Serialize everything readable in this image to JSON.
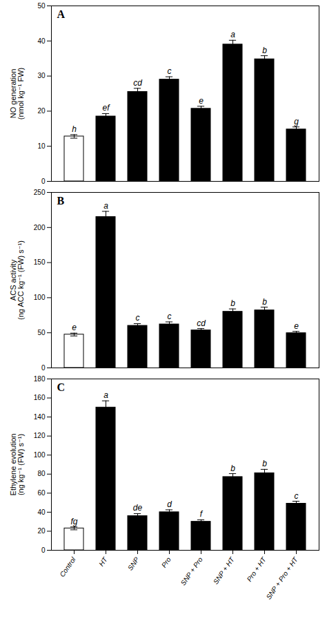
{
  "chart_data": [
    {
      "type": "bar",
      "title": "A",
      "ylabel": "NO generation\n(nmol kg⁻¹ FW)",
      "categories": [
        "Control",
        "HT",
        "SNP",
        "Pro",
        "SNP + Pro",
        "SNP + HT",
        "Pro + HT",
        "SNP + Pro + HT"
      ],
      "values": [
        12.8,
        18.5,
        25.5,
        29.0,
        20.7,
        39.0,
        34.8,
        14.8
      ],
      "errors": [
        0.5,
        0.8,
        1.0,
        0.8,
        0.7,
        1.2,
        1.0,
        0.7
      ],
      "letters": [
        "h",
        "ef",
        "cd",
        "c",
        "e",
        "a",
        "b",
        "g"
      ],
      "colors": [
        "white",
        "black",
        "black",
        "black",
        "black",
        "black",
        "black",
        "black"
      ],
      "ylim": [
        0,
        50
      ],
      "yticks": [
        0,
        10,
        20,
        30,
        40,
        50
      ],
      "grid": false,
      "tick_labels": "y"
    },
    {
      "type": "bar",
      "title": "B",
      "ylabel": "ACS activity\n(ng ACC kg⁻¹ (FW) s⁻¹)",
      "categories": [
        "Control",
        "HT",
        "SNP",
        "Pro",
        "SNP + Pro",
        "SNP + HT",
        "Pro + HT",
        "SNP + Pro + HT"
      ],
      "values": [
        47.5,
        215.0,
        60.0,
        62.0,
        53.5,
        80.0,
        82.0,
        49.5
      ],
      "errors": [
        2.0,
        8.0,
        3.0,
        3.5,
        2.5,
        4.0,
        4.5,
        2.5
      ],
      "letters": [
        "e",
        "a",
        "c",
        "c",
        "cd",
        "b",
        "b",
        "e"
      ],
      "colors": [
        "white",
        "black",
        "black",
        "black",
        "black",
        "black",
        "black",
        "black"
      ],
      "ylim": [
        0,
        250
      ],
      "yticks": [
        0,
        50,
        100,
        150,
        200,
        250
      ],
      "grid": false,
      "tick_labels": "y"
    },
    {
      "type": "bar",
      "title": "C",
      "ylabel": "Ethylene evolution\n(ng kg⁻¹ (FW) s⁻¹)",
      "categories": [
        "Control",
        "HT",
        "SNP",
        "Pro",
        "SNP + Pro",
        "SNP + HT",
        "Pro + HT",
        "SNP + Pro + HT"
      ],
      "values": [
        23.0,
        150.0,
        36.0,
        40.0,
        30.0,
        77.0,
        81.0,
        49.0
      ],
      "errors": [
        1.5,
        7.0,
        2.5,
        2.5,
        2.0,
        3.5,
        4.0,
        2.5
      ],
      "letters": [
        "fg",
        "a",
        "de",
        "d",
        "f",
        "b",
        "b",
        "c"
      ],
      "colors": [
        "white",
        "black",
        "black",
        "black",
        "black",
        "black",
        "black",
        "black"
      ],
      "ylim": [
        0,
        180
      ],
      "yticks": [
        0,
        20,
        40,
        60,
        80,
        100,
        120,
        140,
        160,
        180
      ],
      "grid": false
    }
  ]
}
